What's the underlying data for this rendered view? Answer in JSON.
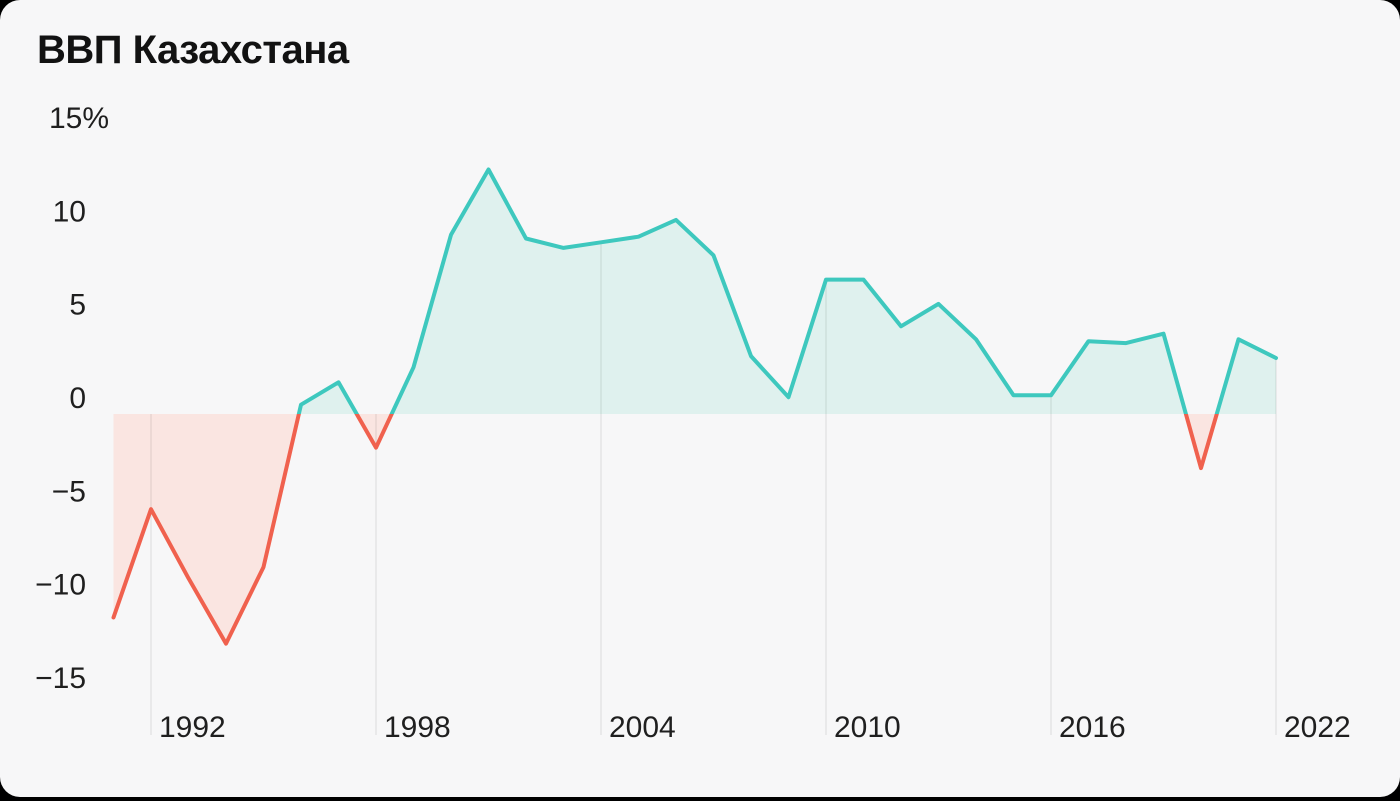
{
  "header": {
    "title": "ВВП Казахстана"
  },
  "colors": {
    "card_background": "#f7f7f8",
    "outside_background": "#000000",
    "positive_line": "#3ec8be",
    "positive_fill": "#dff1ee",
    "negative_line": "#f0614e",
    "negative_fill": "#fae5e1",
    "gridline": "rgba(0,0,0,0.075)",
    "axis_text": "#1f1f1f"
  },
  "chart_data": {
    "type": "area",
    "title": "ВВП Казахстана",
    "unit": "%",
    "x": [
      1991,
      1992,
      1993,
      1994,
      1995,
      1996,
      1997,
      1998,
      1999,
      2000,
      2001,
      2002,
      2003,
      2004,
      2005,
      2006,
      2007,
      2008,
      2009,
      2010,
      2011,
      2012,
      2013,
      2014,
      2015,
      2016,
      2017,
      2018,
      2019,
      2020,
      2021,
      2022
    ],
    "values": [
      -10.9,
      -5.1,
      -8.8,
      -12.3,
      -8.2,
      0.5,
      1.7,
      -1.8,
      2.5,
      9.6,
      13.1,
      9.4,
      8.9,
      9.2,
      9.5,
      10.4,
      8.5,
      3.1,
      0.9,
      7.2,
      7.2,
      4.7,
      5.9,
      4.0,
      1.0,
      1.0,
      3.9,
      3.8,
      4.3,
      -2.9,
      4.0,
      3.0
    ],
    "x_ticks": [
      1992,
      1998,
      2004,
      2010,
      2016,
      2022
    ],
    "x_tick_labels": [
      "1992",
      "1998",
      "2004",
      "2010",
      "2016",
      "2022"
    ],
    "y_ticks": [
      15,
      10,
      5,
      0,
      -5,
      -10,
      -15
    ],
    "y_tick_labels": [
      "15%",
      "10",
      "5",
      "0",
      "−5",
      "−10",
      "−15"
    ],
    "ylim": [
      -15,
      15
    ],
    "baseline": 0,
    "grid": "vertical-only",
    "legend": "none",
    "color_rule": "teal above zero, coral below zero"
  }
}
